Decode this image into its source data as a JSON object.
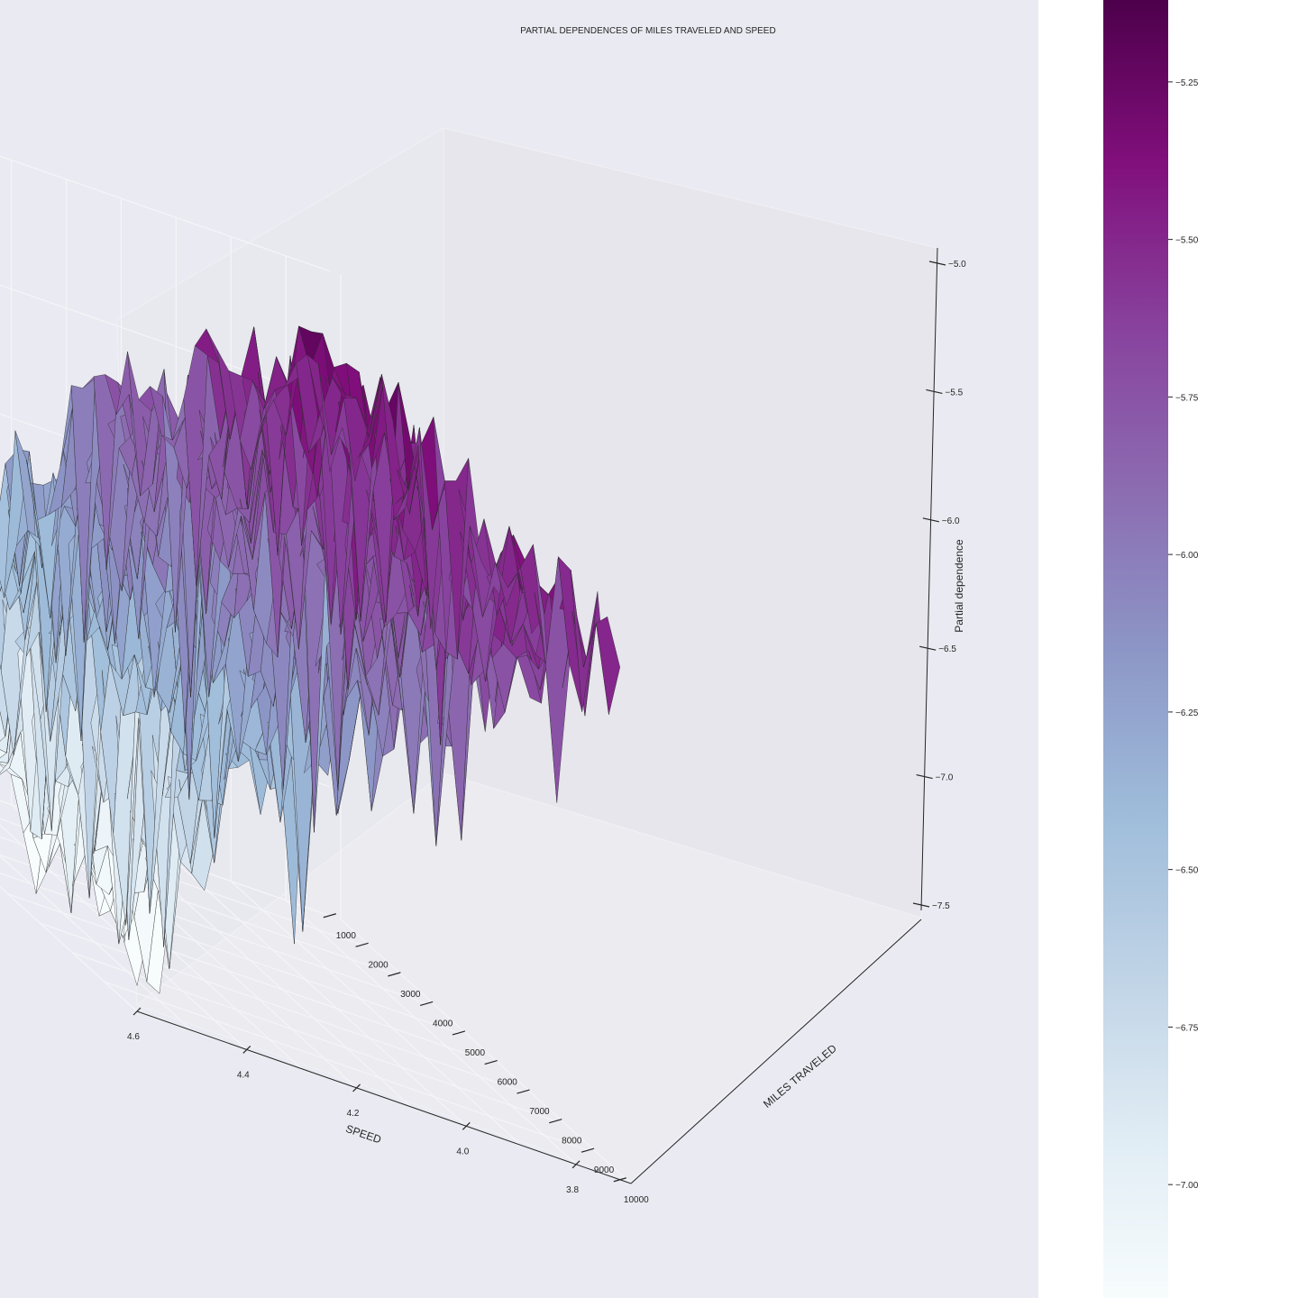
{
  "chart_data": {
    "type": "surface",
    "title": "PARTIAL DEPENDENCES OF MILES TRAVELED AND SPEED",
    "xlabel": "SPEED",
    "ylabel": "MILES TRAVELED",
    "zlabel": "Partial dependence",
    "x_ticks": [
      "4.6",
      "4.4",
      "4.2",
      "4.0",
      "3.8"
    ],
    "y_ticks": [
      "1000",
      "2000",
      "3000",
      "4000",
      "5000",
      "6000",
      "7000",
      "8000",
      "9000",
      "10000"
    ],
    "z_ticks": [
      "-5.0",
      "-5.5",
      "-6.0",
      "-6.5",
      "-7.0",
      "-7.5"
    ],
    "xlim": [
      3.72,
      4.62
    ],
    "ylim": [
      1000,
      10000
    ],
    "zlim": [
      -7.5,
      -5.0
    ],
    "colormap": "BuPu",
    "colorbar": {
      "ticks": [
        "-5.25",
        "-5.50",
        "-5.75",
        "-6.00",
        "-6.25",
        "-6.50",
        "-6.75",
        "-7.00"
      ],
      "range": [
        -7.18,
        -5.12
      ]
    },
    "surface_profile": {
      "speed": [
        4.6,
        4.5,
        4.4,
        4.3,
        4.2,
        4.1,
        4.0,
        3.9,
        3.8,
        3.72
      ],
      "mean_partial_dependence": [
        -7.15,
        -6.85,
        -6.45,
        -6.2,
        -6.05,
        -5.9,
        -5.75,
        -5.55,
        -5.45,
        -5.55
      ]
    },
    "grid": true,
    "background": "#eaeaf2"
  }
}
